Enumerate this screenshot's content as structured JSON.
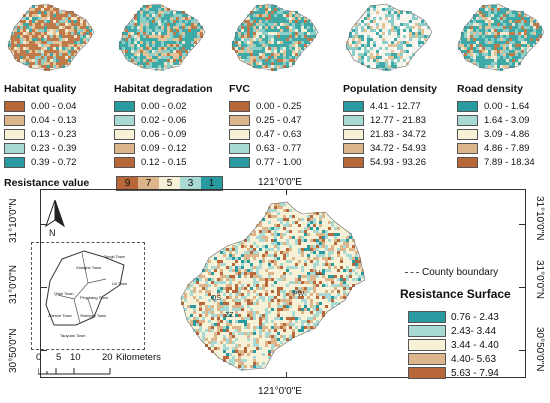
{
  "thumbnails": [
    {
      "name": "habitat-quality-map",
      "colors": [
        "#c07a4a",
        "#e3c397",
        "#8dcfc8",
        "#3fa9a8",
        "#f1e8cf"
      ]
    },
    {
      "name": "habitat-degradation-map",
      "colors": [
        "#3fa9a8",
        "#8dcfc8",
        "#e3c397",
        "#c07a4a",
        "#f1e8cf"
      ]
    },
    {
      "name": "fvc-map",
      "colors": [
        "#3fa9a8",
        "#8dcfc8",
        "#e3c397",
        "#c07a4a",
        "#f3eed6"
      ]
    },
    {
      "name": "population-density-map",
      "colors": [
        "#f6f3ea",
        "#8dcfc8",
        "#3fa9a8",
        "#e3c397",
        "#ffffff"
      ]
    },
    {
      "name": "road-density-map",
      "colors": [
        "#3fa9a8",
        "#8dcfc8",
        "#e3c397",
        "#c07a4a",
        "#f1e8cf"
      ]
    }
  ],
  "legends": [
    {
      "title": "Habitat quality",
      "items": [
        {
          "label": "0.00 - 0.04",
          "color": "#b8673b"
        },
        {
          "label": "0.04 - 0.13",
          "color": "#ddb58b"
        },
        {
          "label": "0.13 - 0.23",
          "color": "#f6f1d7"
        },
        {
          "label": "0.23 - 0.39",
          "color": "#a9d9d3"
        },
        {
          "label": "0.39 - 0.72",
          "color": "#2a9aa1"
        }
      ]
    },
    {
      "title": "Habitat degradation",
      "items": [
        {
          "label": "0.00 - 0.02",
          "color": "#2a9aa1"
        },
        {
          "label": "0.02 - 0.06",
          "color": "#a9d9d3"
        },
        {
          "label": "0.06 - 0.09",
          "color": "#f6f1d7"
        },
        {
          "label": "0.09 - 0.12",
          "color": "#ddb58b"
        },
        {
          "label": "0.12 - 0.15",
          "color": "#b8673b"
        }
      ]
    },
    {
      "title": "FVC",
      "items": [
        {
          "label": "0.00 - 0.25",
          "color": "#b8673b"
        },
        {
          "label": "0.25 - 0.47",
          "color": "#ddb58b"
        },
        {
          "label": "0.47 - 0.63",
          "color": "#f6f1d7"
        },
        {
          "label": "0.63 - 0.77",
          "color": "#a9d9d3"
        },
        {
          "label": "0.77 - 1.00",
          "color": "#2a9aa1"
        }
      ]
    },
    {
      "title": "Population density",
      "items": [
        {
          "label": "4.41 - 12.77",
          "color": "#2a9aa1"
        },
        {
          "label": "12.77 - 21.83",
          "color": "#a9d9d3"
        },
        {
          "label": "21.83 - 34.72",
          "color": "#f6f1d7"
        },
        {
          "label": "34.72 - 54.93",
          "color": "#ddb58b"
        },
        {
          "label": "54.93 - 93.26",
          "color": "#b8673b"
        }
      ]
    },
    {
      "title": "Road density",
      "items": [
        {
          "label": "0.00 - 1.64",
          "color": "#2a9aa1"
        },
        {
          "label": "1.64 - 3.09",
          "color": "#a9d9d3"
        },
        {
          "label": "3.09 - 4.86",
          "color": "#f6f1d7"
        },
        {
          "label": "4.86 - 7.89",
          "color": "#ddb58b"
        },
        {
          "label": "7.89 - 18.34",
          "color": "#b8673b"
        }
      ]
    }
  ],
  "resistance_value": {
    "title": "Resistance value",
    "items": [
      {
        "label": "9",
        "color": "#b8673b"
      },
      {
        "label": "7",
        "color": "#ddb58b"
      },
      {
        "label": "5",
        "color": "#f6f1d7"
      },
      {
        "label": "3",
        "color": "#a9d9d3"
      },
      {
        "label": "1",
        "color": "#2a9aa1"
      }
    ]
  },
  "coordinates": {
    "top_longitude": "121°0'0\"E",
    "bottom_longitude": "121°0'0\"E",
    "left_latitudes": [
      "31°10'0\"N",
      "31°0'0\"N",
      "30°50'0\"N"
    ],
    "right_latitudes": [
      "31°10'0\"N",
      "31°0'0\"N",
      "30°50'0\"N"
    ]
  },
  "inset": {
    "north_label": "N",
    "towns": [
      "Xianghe Town",
      "Tongli Town",
      "Lili Town",
      "Qishi Town",
      "Pingwang Town",
      "Zhenze Town",
      "Shengze Town",
      "Taoyuan Town"
    ]
  },
  "scale_bar": {
    "ticks": [
      "0",
      "5",
      "10",
      "20"
    ],
    "unit": "Kilometers"
  },
  "main_map": {
    "labels": [
      "LL",
      "PW",
      "QS",
      "ZZ"
    ],
    "colors": [
      "#f6f1d7",
      "#a9d9d3",
      "#ddb58b",
      "#b8673b",
      "#2a9aa1"
    ]
  },
  "resistance_surface": {
    "boundary_label": "County boundary",
    "title": "Resistance Surface",
    "items": [
      {
        "label": "0.76 - 2.43",
        "color": "#2a9aa1"
      },
      {
        "label": "2.43- 3.44",
        "color": "#a9d9d3"
      },
      {
        "label": "3.44 - 4.40",
        "color": "#f6f1d7"
      },
      {
        "label": "4.40- 5.63",
        "color": "#ddb58b"
      },
      {
        "label": "5.63 - 7.94",
        "color": "#b8673b"
      }
    ]
  }
}
